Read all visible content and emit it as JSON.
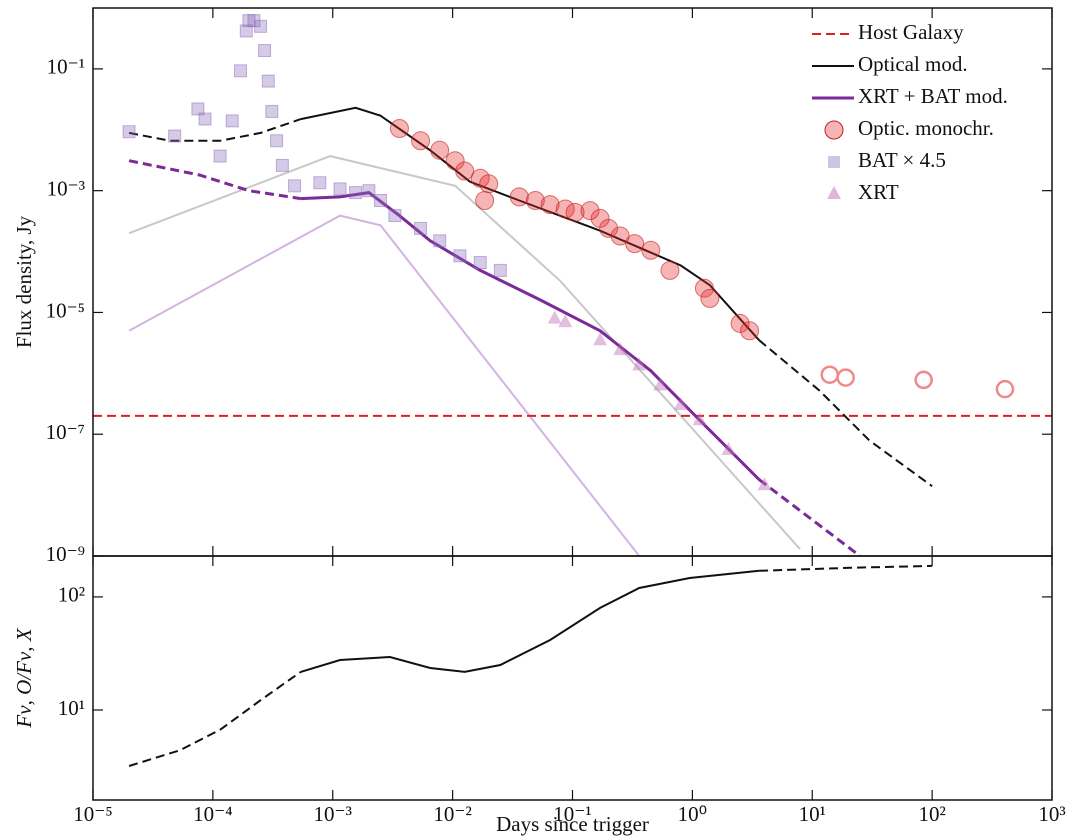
{
  "chart_data": [
    {
      "type": "line",
      "ylabel": "Flux density, Jy",
      "xscale": "log",
      "yscale": "log",
      "xlim": [
        1e-05,
        1000
      ],
      "ylim": [
        1e-09,
        1
      ],
      "xticks": [
        {
          "value": 1e-05,
          "label": "10⁻⁵"
        },
        {
          "value": 0.0001,
          "label": "10⁻⁴"
        },
        {
          "value": 0.001,
          "label": "10⁻³"
        },
        {
          "value": 0.01,
          "label": "10⁻²"
        },
        {
          "value": 0.1,
          "label": "10⁻¹"
        },
        {
          "value": 1,
          "label": "10⁰"
        },
        {
          "value": 10,
          "label": "10¹"
        },
        {
          "value": 100,
          "label": "10²"
        },
        {
          "value": 1000,
          "label": "10³"
        }
      ],
      "yticks": [
        {
          "value": 1e-09,
          "label": "10⁻⁹"
        },
        {
          "value": 1e-07,
          "label": "10⁻⁷"
        },
        {
          "value": 1e-05,
          "label": "10⁻⁵"
        },
        {
          "value": 0.001,
          "label": "10⁻³"
        },
        {
          "value": 0.1,
          "label": "10⁻¹"
        }
      ],
      "legend": "upper right",
      "series": [
        {
          "kind": "line",
          "color": "#c8c8c8",
          "dash": false,
          "x": [
            2e-05,
            0.00095,
            0.0105,
            0.079,
            7.9
          ],
          "values": [
            0.0002,
            0.0037,
            0.0012,
            3.3e-05,
            1.3e-09
          ]
        },
        {
          "kind": "line",
          "color": "#d3b3e0",
          "dash": false,
          "x": [
            2e-05,
            0.00115,
            0.0025,
            0.36
          ],
          "values": [
            5e-06,
            0.00039,
            0.00027,
            1e-09
          ]
        },
        {
          "name": "Host Galaxy",
          "kind": "line",
          "color": "#e02020",
          "dash": true,
          "x": [
            1e-05,
            1000
          ],
          "values": [
            2e-07,
            2e-07
          ]
        },
        {
          "kind": "line",
          "color": "#111111",
          "dash": true,
          "x": [
            2e-05,
            4.4e-05,
            0.000115,
            0.00025,
            0.00054
          ],
          "values": [
            0.0089,
            0.0066,
            0.0066,
            0.0089,
            0.015
          ]
        },
        {
          "name": "Optical mod.",
          "kind": "line",
          "color": "#111111",
          "dash": false,
          "x": [
            0.00054,
            0.00155,
            0.0025,
            0.0065,
            0.014,
            0.036,
            0.17,
            0.8,
            1.4,
            3.6
          ],
          "values": [
            0.015,
            0.023,
            0.017,
            0.0046,
            0.0014,
            0.00069,
            0.00022,
            5.9e-05,
            2.8e-05,
            3.5e-06
          ]
        },
        {
          "kind": "line",
          "color": "#111111",
          "dash": true,
          "x": [
            3.6,
            11.5,
            30,
            100
          ],
          "values": [
            3.5e-06,
            5.2e-07,
            7.9e-08,
            1.4e-08
          ]
        },
        {
          "kind": "line",
          "color": "#7b2a9a",
          "dash": true,
          "x": [
            2e-05,
            7.8e-05,
            0.0002,
            0.00054
          ],
          "values": [
            0.0031,
            0.0018,
            0.001,
            0.00074
          ]
        },
        {
          "name": "XRT + BAT mod.",
          "kind": "line",
          "color": "#7b2a9a",
          "dash": false,
          "x": [
            0.00054,
            0.00115,
            0.002,
            0.0036,
            0.0065,
            0.017,
            0.054,
            0.17,
            0.45,
            1.15,
            3.6
          ],
          "values": [
            0.00074,
            0.00079,
            0.00093,
            0.00039,
            0.00015,
            4.9e-05,
            1.6e-05,
            5e-06,
            1.1e-06,
            1.7e-07,
            1.8e-08
          ]
        },
        {
          "kind": "line",
          "color": "#7b2a9a",
          "dash": true,
          "x": [
            3.6,
            25
          ],
          "values": [
            1.8e-08,
            1e-09
          ]
        },
        {
          "name": "Optic. monochr.",
          "kind": "scatter",
          "marker": "circle",
          "color": "#e8282c",
          "x": [
            0.0036,
            0.0054,
            0.0078,
            0.0105,
            0.0126,
            0.017,
            0.02,
            0.0185,
            0.036,
            0.049,
            0.065,
            0.087,
            0.105,
            0.14,
            0.17,
            0.2,
            0.25,
            0.33,
            0.45,
            0.65,
            1.26,
            1.4,
            2.5,
            3.0
          ],
          "values": [
            0.0105,
            0.0066,
            0.0046,
            0.0031,
            0.0021,
            0.0016,
            0.0013,
            0.00069,
            0.00079,
            0.00069,
            0.00059,
            0.0005,
            0.00044,
            0.00047,
            0.00035,
            0.00024,
            0.00018,
            0.000135,
            0.000105,
            4.9e-05,
            2.5e-05,
            1.7e-05,
            6.6e-06,
            5e-06
          ]
        },
        {
          "kind": "scatter",
          "marker": "open-circle",
          "color": "#f08a8a",
          "x": [
            14,
            19,
            85,
            405
          ],
          "values": [
            9.5e-07,
            8.5e-07,
            7.8e-07,
            5.5e-07
          ]
        },
        {
          "name": "BAT × 4.5",
          "kind": "scatter",
          "marker": "square",
          "color": "#8a6bb8",
          "x": [
            2e-05,
            4.8e-05,
            7.5e-05,
            8.6e-05,
            0.000115,
            0.000145,
            0.00017,
            0.00019,
            0.0002,
            0.00022,
            0.00025,
            0.00027,
            0.00029,
            0.00031,
            0.00034,
            0.00038,
            0.00048,
            0.00078,
            0.00115,
            0.00155,
            0.002,
            0.0025,
            0.0033,
            0.0054,
            0.0078,
            0.0115,
            0.017,
            0.025
          ],
          "values": [
            0.0093,
            0.0079,
            0.022,
            0.015,
            0.0037,
            0.014,
            0.093,
            0.42,
            0.62,
            0.62,
            0.5,
            0.2,
            0.063,
            0.02,
            0.0066,
            0.0026,
            0.0012,
            0.00135,
            0.00107,
            0.00093,
            0.001,
            0.00069,
            0.00039,
            0.00024,
            0.00015,
            8.5e-05,
            6.6e-05,
            4.9e-05
          ]
        },
        {
          "name": "XRT",
          "kind": "scatter",
          "marker": "triangle",
          "color": "#c070b8",
          "x": [
            0.071,
            0.087,
            0.17,
            0.25,
            0.36,
            0.54,
            0.8,
            1.15,
            2.0,
            4.0
          ],
          "values": [
            7.9e-06,
            6.9e-06,
            3.5e-06,
            2.4e-06,
            1.35e-06,
            6.3e-07,
            3e-07,
            1.7e-07,
            5.5e-08,
            1.45e-08
          ]
        }
      ]
    },
    {
      "type": "line",
      "ylabel": "Fν, O/Fν, X",
      "xlabel": "Days since trigger",
      "xscale": "log",
      "yscale": "log",
      "xlim": [
        1e-05,
        1000
      ],
      "ylim": [
        1.6,
        230
      ],
      "xticks": [
        {
          "value": 1e-05,
          "label": "10⁻⁵"
        },
        {
          "value": 0.0001,
          "label": "10⁻⁴"
        },
        {
          "value": 0.001,
          "label": "10⁻³"
        },
        {
          "value": 0.01,
          "label": "10⁻²"
        },
        {
          "value": 0.1,
          "label": "10⁻¹"
        },
        {
          "value": 1,
          "label": "10⁰"
        },
        {
          "value": 10,
          "label": "10¹"
        },
        {
          "value": 100,
          "label": "10²"
        },
        {
          "value": 1000,
          "label": "10³"
        }
      ],
      "yticks": [
        {
          "value": 10,
          "label": "10¹"
        },
        {
          "value": 100,
          "label": "10²"
        }
      ],
      "series": [
        {
          "kind": "line",
          "color": "#111111",
          "dash": true,
          "x": [
            2e-05,
            5.3e-05,
            0.000115,
            0.00025,
            0.00054
          ],
          "values": [
            3.2,
            4.4,
            6.7,
            12.2,
            21.7
          ]
        },
        {
          "kind": "line",
          "color": "#111111",
          "dash": false,
          "x": [
            0.00054,
            0.00115,
            0.003,
            0.0065,
            0.0126,
            0.025,
            0.065,
            0.17,
            0.36,
            0.95,
            3.6
          ],
          "values": [
            21.7,
            27.7,
            29.4,
            23.5,
            21.7,
            25,
            41.6,
            80,
            120,
            147,
            170
          ]
        },
        {
          "kind": "line",
          "color": "#111111",
          "dash": true,
          "x": [
            3.6,
            20.6,
            100
          ],
          "values": [
            170,
            181,
            188
          ]
        }
      ]
    }
  ]
}
